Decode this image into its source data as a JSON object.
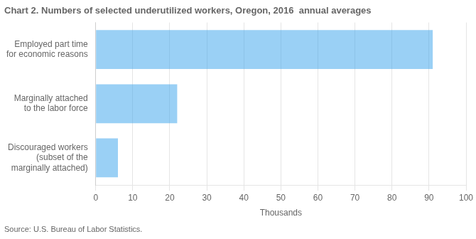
{
  "chart_data": {
    "type": "bar",
    "orientation": "horizontal",
    "title": "Chart 2. Numbers of selected underutilized workers, Oregon, 2016  annual averages",
    "categories": [
      "Discouraged workers\n(subset of the\nmarginally attached)",
      "Marginally attached\nto the labor force",
      "Employed part time\nfor economic reasons"
    ],
    "values": [
      6,
      22,
      91
    ],
    "xlabel": "Thousands",
    "xlim": [
      0,
      100
    ],
    "xticks": [
      0,
      10,
      20,
      30,
      40,
      50,
      60,
      70,
      80,
      90,
      100
    ],
    "grid": true,
    "annotation": "Source: U.S. Bureau of Labor Statistics."
  }
}
